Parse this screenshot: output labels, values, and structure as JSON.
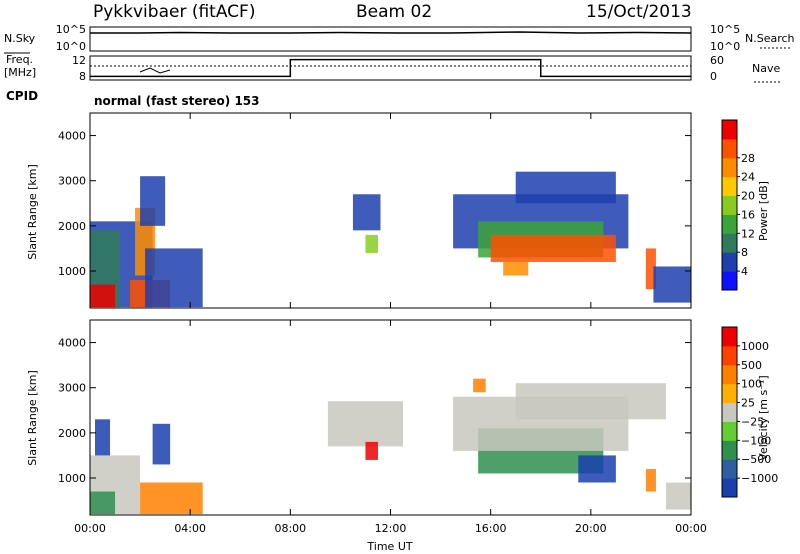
{
  "header": {
    "radar": "Pykkvibaer (fitACF)",
    "beam": "Beam 02",
    "date": "15/Oct/2013"
  },
  "noise_panel": {
    "left_label": "N.Sky",
    "right_label": "N.Search",
    "left_ticks": [
      "10^5",
      "10^0"
    ],
    "right_ticks": [
      "10^5",
      "10^0"
    ]
  },
  "freq_panel": {
    "left_label_line1": "Freq.",
    "left_label_line2": "[MHz]",
    "right_label": "Nave",
    "left_ticks": [
      "12",
      "8"
    ],
    "right_ticks": [
      "60",
      "0"
    ],
    "nave_steps": [
      {
        "from_hour": 0,
        "to_hour": 8,
        "level": 0.15
      },
      {
        "from_hour": 8,
        "to_hour": 18,
        "level": 0.85
      },
      {
        "from_hour": 18,
        "to_hour": 24,
        "level": 0.15
      }
    ]
  },
  "cpid": {
    "label": "CPID",
    "mode": "normal (fast stereo) 153"
  },
  "chart_data": [
    {
      "type": "heatmap",
      "name": "power",
      "ylabel": "Slant Range [km]",
      "xlabel": "",
      "yticks": [
        1000,
        2000,
        3000,
        4000
      ],
      "ylim": [
        180,
        4500
      ],
      "xlim_hours": [
        0,
        24
      ],
      "xticks_hours": [
        0,
        4,
        8,
        12,
        16,
        20,
        24
      ],
      "colorbar": {
        "label": "Power [dB]",
        "ticks": [
          "4",
          "8",
          "12",
          "16",
          "20",
          "24",
          "28"
        ],
        "colors": [
          "#1010ff",
          "#1f3fae",
          "#2f7a5a",
          "#3aa33a",
          "#88cc22",
          "#ffc800",
          "#ff8c00",
          "#ff5000",
          "#ee0000"
        ]
      },
      "regions": [
        {
          "x0": 0.0,
          "x1": 2.5,
          "y0": 200,
          "y1": 2100,
          "color": "#1f3fae"
        },
        {
          "x0": 0.0,
          "x1": 1.2,
          "y0": 200,
          "y1": 1900,
          "color": "#2f7a5a"
        },
        {
          "x0": 0.0,
          "x1": 1.0,
          "y0": 200,
          "y1": 700,
          "color": "#ee0000"
        },
        {
          "x0": 1.6,
          "x1": 3.2,
          "y0": 200,
          "y1": 800,
          "color": "#ff5000"
        },
        {
          "x0": 1.8,
          "x1": 2.6,
          "y0": 900,
          "y1": 2400,
          "color": "#ff8c00"
        },
        {
          "x0": 2.2,
          "x1": 4.5,
          "y0": 200,
          "y1": 1500,
          "color": "#1f3fae"
        },
        {
          "x0": 2.0,
          "x1": 3.0,
          "y0": 2000,
          "y1": 3100,
          "color": "#1f3fae"
        },
        {
          "x0": 10.5,
          "x1": 11.6,
          "y0": 1900,
          "y1": 2700,
          "color": "#1f3fae"
        },
        {
          "x0": 11.0,
          "x1": 11.5,
          "y0": 1400,
          "y1": 1800,
          "color": "#88cc22"
        },
        {
          "x0": 14.5,
          "x1": 21.5,
          "y0": 1500,
          "y1": 2700,
          "color": "#1f3fae"
        },
        {
          "x0": 15.5,
          "x1": 20.5,
          "y0": 1300,
          "y1": 2100,
          "color": "#3aa33a"
        },
        {
          "x0": 16.0,
          "x1": 21.0,
          "y0": 1200,
          "y1": 1800,
          "color": "#ff5000"
        },
        {
          "x0": 16.5,
          "x1": 17.5,
          "y0": 900,
          "y1": 1200,
          "color": "#ff8c00"
        },
        {
          "x0": 17.0,
          "x1": 21.0,
          "y0": 2500,
          "y1": 3200,
          "color": "#1f3fae"
        },
        {
          "x0": 22.2,
          "x1": 22.6,
          "y0": 600,
          "y1": 1500,
          "color": "#ff5000"
        },
        {
          "x0": 22.5,
          "x1": 24.0,
          "y0": 300,
          "y1": 1100,
          "color": "#1f3fae"
        }
      ]
    },
    {
      "type": "heatmap",
      "name": "velocity",
      "ylabel": "Slant Range [km]",
      "xlabel": "Time UT",
      "yticks": [
        1000,
        2000,
        3000,
        4000
      ],
      "ylim": [
        180,
        4500
      ],
      "xlim_hours": [
        0,
        24
      ],
      "xticks_hours": [
        0,
        4,
        8,
        12,
        16,
        20,
        24
      ],
      "xticklabels": [
        "00:00",
        "04:00",
        "08:00",
        "12:00",
        "16:00",
        "20:00",
        "00:00"
      ],
      "colorbar": {
        "label": "Velocity [m s⁻¹]",
        "ticks": [
          "1000",
          "500",
          "100",
          "25",
          "−25",
          "−100",
          "−500",
          "−1000"
        ],
        "colors": [
          "#1a3fb0",
          "#2f5ea0",
          "#2f8f4f",
          "#66cc33",
          "#c8c8c0",
          "#ffb000",
          "#ff8000",
          "#ff4000",
          "#ee0000"
        ]
      },
      "regions": [
        {
          "x0": 0.0,
          "x1": 2.0,
          "y0": 200,
          "y1": 1500,
          "color": "#c8c8c0"
        },
        {
          "x0": 0.0,
          "x1": 1.0,
          "y0": 200,
          "y1": 700,
          "color": "#2f8f4f"
        },
        {
          "x0": 0.2,
          "x1": 0.8,
          "y0": 1500,
          "y1": 2300,
          "color": "#1a3fb0"
        },
        {
          "x0": 2.0,
          "x1": 4.5,
          "y0": 200,
          "y1": 900,
          "color": "#ff8000"
        },
        {
          "x0": 2.5,
          "x1": 3.2,
          "y0": 1300,
          "y1": 2200,
          "color": "#1a3fb0"
        },
        {
          "x0": 9.5,
          "x1": 12.5,
          "y0": 1700,
          "y1": 2700,
          "color": "#c8c8c0"
        },
        {
          "x0": 11.0,
          "x1": 11.5,
          "y0": 1400,
          "y1": 1800,
          "color": "#ee0000"
        },
        {
          "x0": 15.3,
          "x1": 15.8,
          "y0": 2900,
          "y1": 3200,
          "color": "#ff8000"
        },
        {
          "x0": 15.5,
          "x1": 20.5,
          "y0": 1100,
          "y1": 2100,
          "color": "#2f8f4f"
        },
        {
          "x0": 14.5,
          "x1": 21.5,
          "y0": 1600,
          "y1": 2800,
          "color": "#c8c8c0"
        },
        {
          "x0": 17.0,
          "x1": 23.0,
          "y0": 2300,
          "y1": 3100,
          "color": "#c8c8c0"
        },
        {
          "x0": 19.5,
          "x1": 21.0,
          "y0": 900,
          "y1": 1500,
          "color": "#1a3fb0"
        },
        {
          "x0": 22.2,
          "x1": 22.6,
          "y0": 700,
          "y1": 1200,
          "color": "#ff8000"
        },
        {
          "x0": 23.0,
          "x1": 24.0,
          "y0": 300,
          "y1": 900,
          "color": "#c8c8c0"
        }
      ]
    }
  ]
}
